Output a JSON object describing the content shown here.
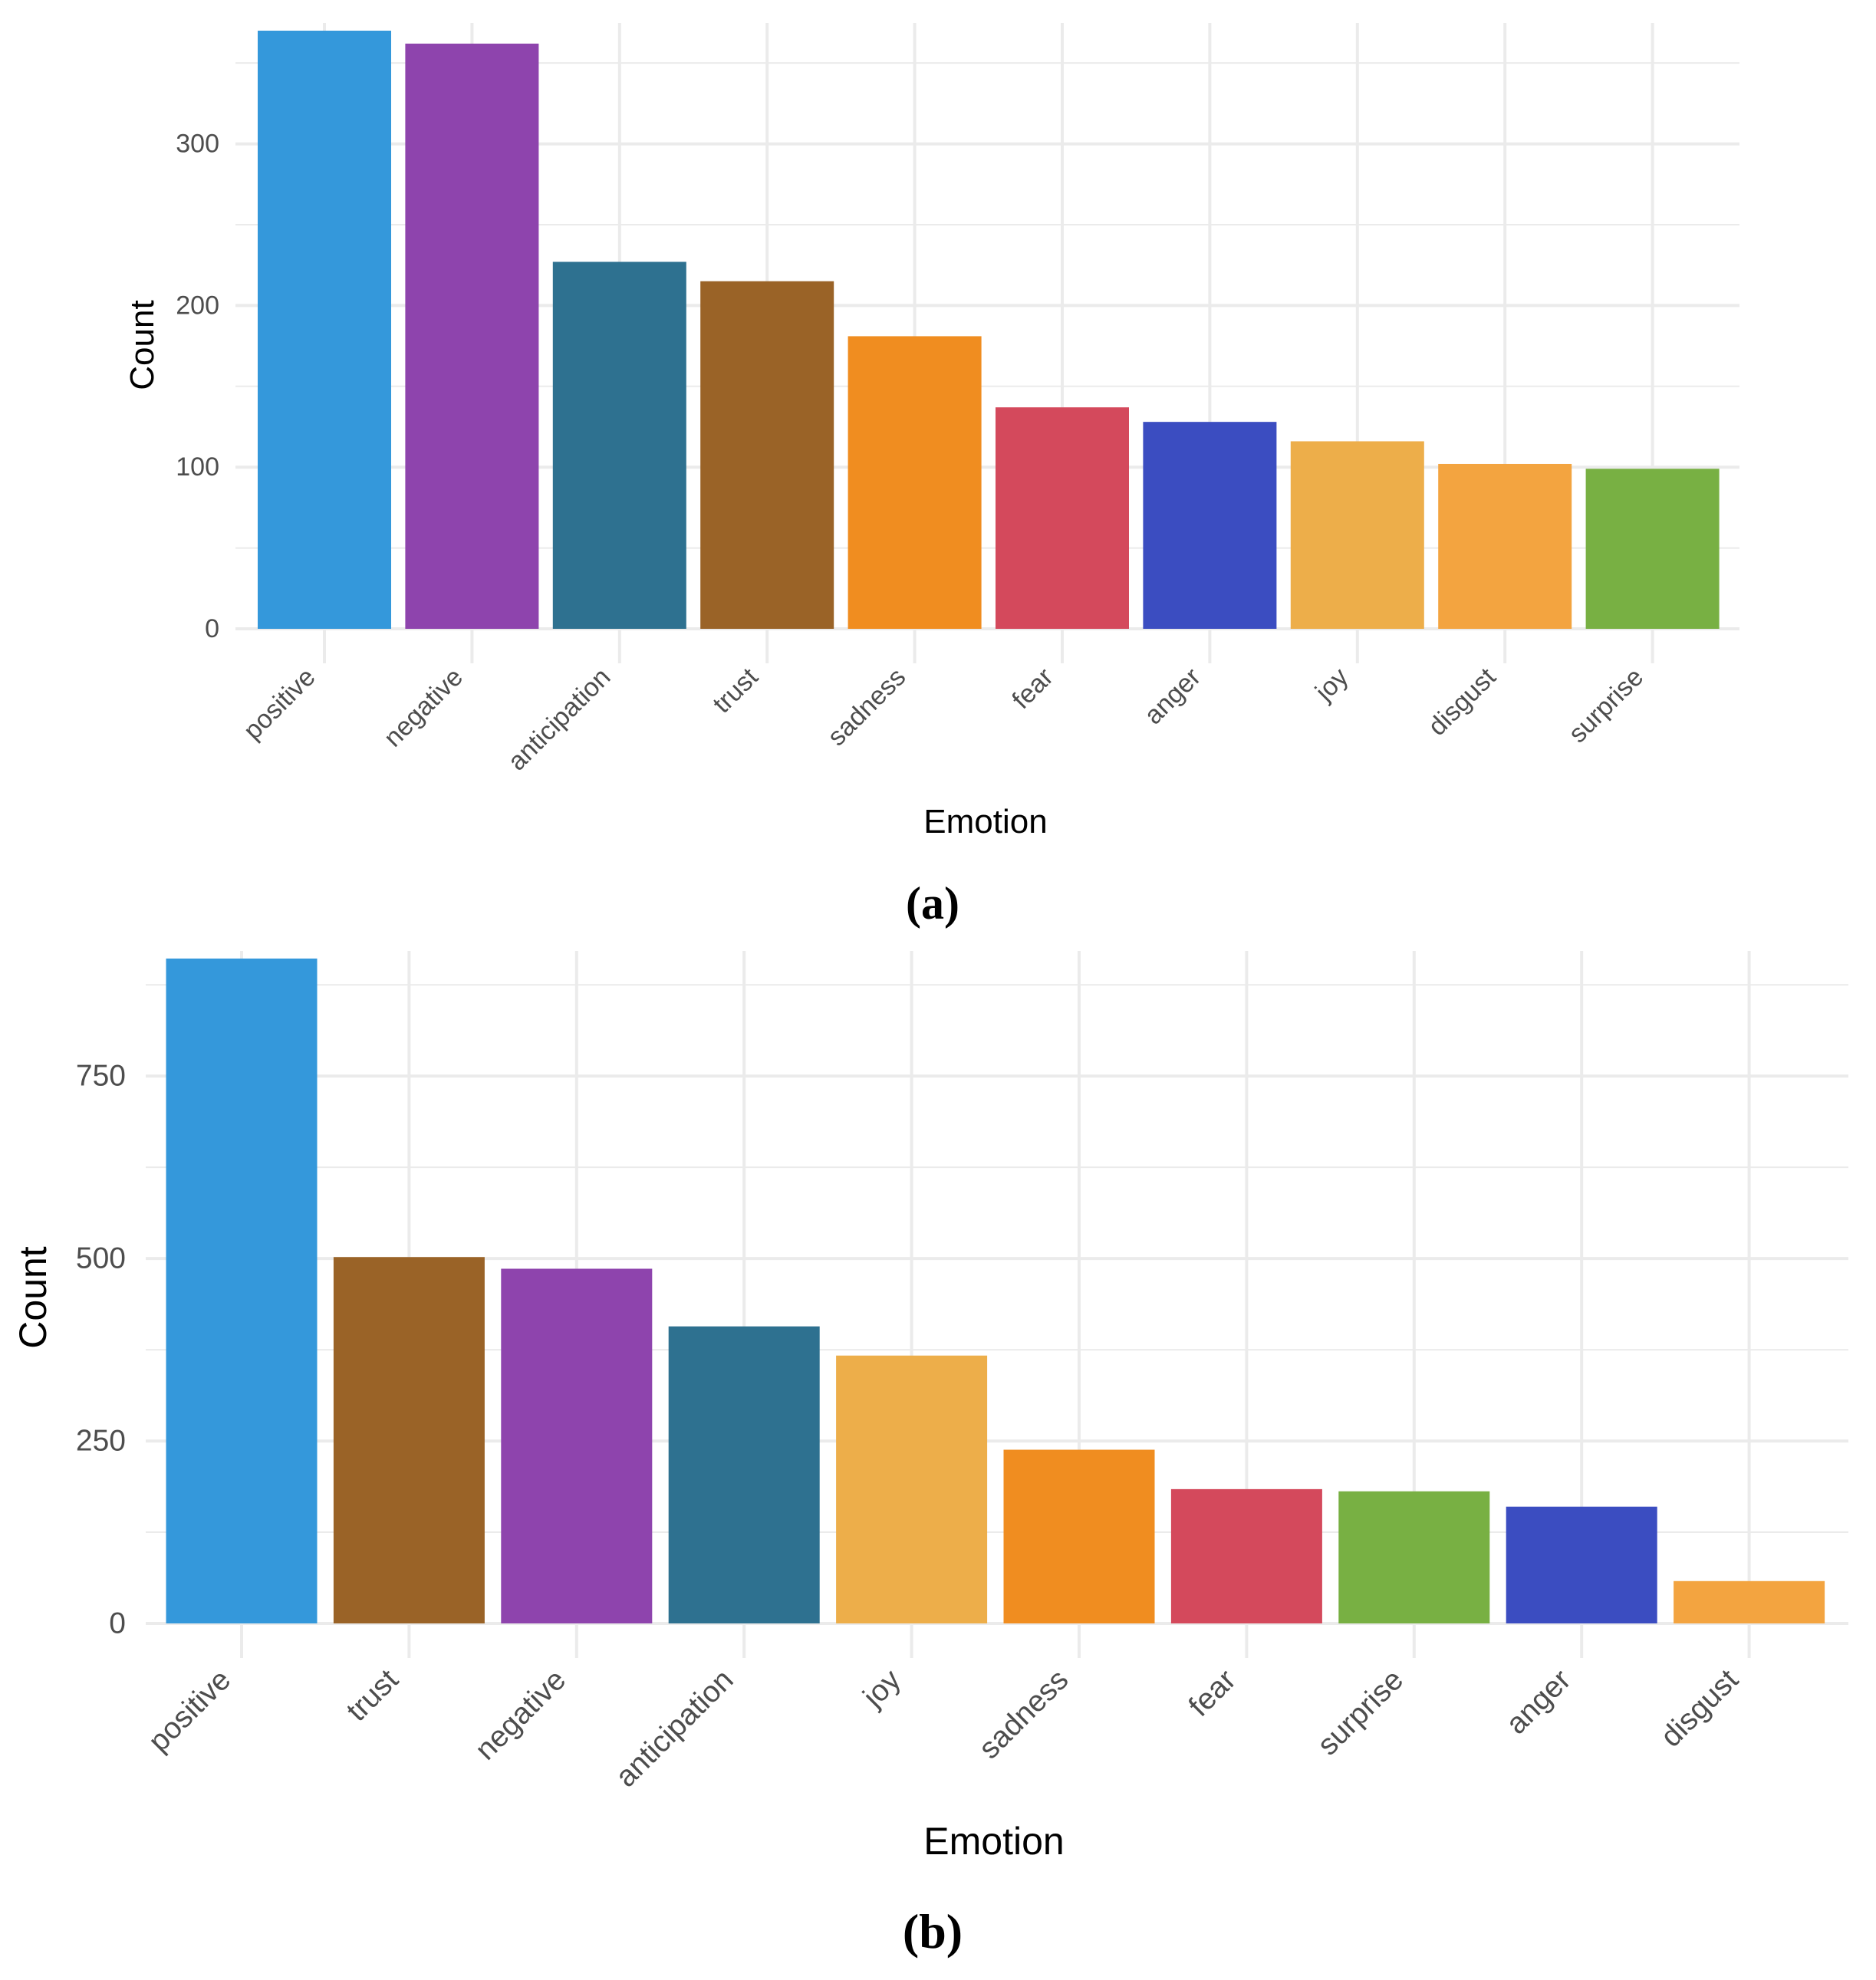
{
  "chart_data": [
    {
      "type": "bar",
      "panel": "a",
      "caption_label": "a",
      "xlabel": "Emotion",
      "ylabel": "Count",
      "ylim": [
        0,
        370
      ],
      "yticks": [
        0,
        100,
        200,
        300
      ],
      "grid": true,
      "categories": [
        "positive",
        "negative",
        "anticipation",
        "trust",
        "sadness",
        "fear",
        "anger",
        "joy",
        "disgust",
        "surprise"
      ],
      "values": [
        370,
        362,
        227,
        215,
        181,
        137,
        128,
        116,
        102,
        99
      ],
      "colors": [
        "#3498DB",
        "#8E44AD",
        "#2E7190",
        "#9A6327",
        "#F08D20",
        "#D4495C",
        "#3B4DC1",
        "#EDAE4A",
        "#F3A440",
        "#78B043"
      ]
    },
    {
      "type": "bar",
      "panel": "b",
      "caption_label": "b",
      "xlabel": "Emotion",
      "ylabel": "Count",
      "ylim": [
        0,
        911
      ],
      "yticks": [
        0,
        250,
        500,
        750
      ],
      "grid": true,
      "categories": [
        "positive",
        "trust",
        "negative",
        "anticipation",
        "joy",
        "sadness",
        "fear",
        "surprise",
        "anger",
        "disgust"
      ],
      "values": [
        911,
        502,
        486,
        407,
        367,
        238,
        184,
        181,
        160,
        58
      ],
      "colors": [
        "#3498DB",
        "#9A6327",
        "#8E44AD",
        "#2E7190",
        "#EDAE4A",
        "#F08D20",
        "#D4495C",
        "#78B043",
        "#3B4DC1",
        "#F3A440"
      ]
    }
  ]
}
